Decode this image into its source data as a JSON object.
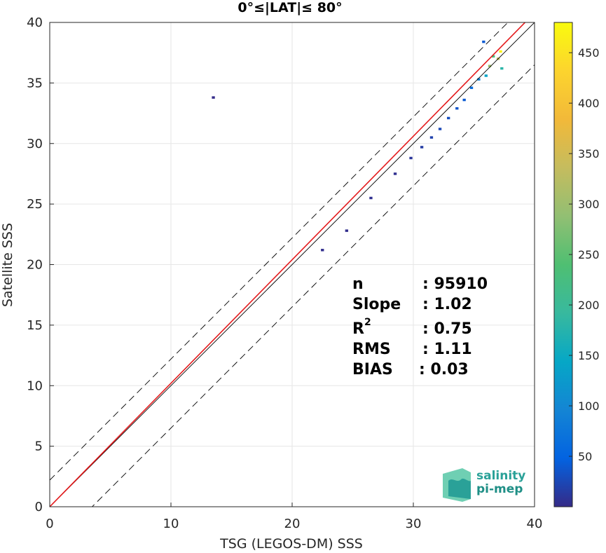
{
  "chart_data": {
    "type": "heatmap",
    "title": "0°≤|LAT|≤ 80°",
    "xlabel": "TSG (LEGOS-DM) SSS",
    "ylabel": "Satellite SSS",
    "xlim": [
      0,
      40
    ],
    "ylim": [
      0,
      40
    ],
    "xticks": [
      "0",
      "10",
      "20",
      "30",
      "40"
    ],
    "yticks": [
      "0",
      "5",
      "10",
      "15",
      "20",
      "25",
      "30",
      "35",
      "40"
    ],
    "grid": true,
    "colormap": "parula",
    "colorbar": {
      "range": [
        0,
        480
      ],
      "ticks": [
        "50",
        "100",
        "150",
        "200",
        "250",
        "300",
        "350",
        "400",
        "450"
      ]
    },
    "reference_lines": [
      {
        "name": "1:1",
        "style": "solid",
        "color": "#000000",
        "intercept": 0,
        "slope": 1
      },
      {
        "name": "fit",
        "style": "solid",
        "color": "#e41a1c",
        "intercept": 0,
        "slope": 1.02
      },
      {
        "name": "upper",
        "style": "dashed",
        "color": "#000000",
        "intercept": 2.2,
        "slope": 1
      },
      {
        "name": "lower",
        "style": "dashed",
        "color": "#000000",
        "intercept": -3.5,
        "slope": 1
      }
    ],
    "density_cells": [
      {
        "x": 37.2,
        "y": 37.6,
        "v": 470
      },
      {
        "x": 37.0,
        "y": 37.0,
        "v": 330
      },
      {
        "x": 36.3,
        "y": 36.4,
        "v": 300
      },
      {
        "x": 36.6,
        "y": 37.2,
        "v": 230
      },
      {
        "x": 37.3,
        "y": 36.2,
        "v": 180
      },
      {
        "x": 36.0,
        "y": 35.6,
        "v": 140
      },
      {
        "x": 35.4,
        "y": 35.3,
        "v": 90
      },
      {
        "x": 34.8,
        "y": 34.6,
        "v": 60
      },
      {
        "x": 35.8,
        "y": 38.4,
        "v": 40
      },
      {
        "x": 34.2,
        "y": 33.6,
        "v": 40
      },
      {
        "x": 33.6,
        "y": 32.9,
        "v": 35
      },
      {
        "x": 32.9,
        "y": 32.1,
        "v": 30
      },
      {
        "x": 32.2,
        "y": 31.2,
        "v": 25
      },
      {
        "x": 31.5,
        "y": 30.5,
        "v": 20
      },
      {
        "x": 30.7,
        "y": 29.7,
        "v": 15
      },
      {
        "x": 29.8,
        "y": 28.8,
        "v": 10
      },
      {
        "x": 28.5,
        "y": 27.5,
        "v": 5
      },
      {
        "x": 26.5,
        "y": 25.5,
        "v": 5
      },
      {
        "x": 24.5,
        "y": 22.8,
        "v": 3
      },
      {
        "x": 22.5,
        "y": 21.2,
        "v": 3
      },
      {
        "x": 13.5,
        "y": 33.8,
        "v": 1
      }
    ]
  },
  "stats": {
    "n_label": "n",
    "n_value": ": 95910",
    "slope_label": "Slope",
    "slope_value": ": 1.02",
    "r2_label": "R",
    "r2_sup": "2",
    "r2_value": ": 0.75",
    "rms_label": "RMS",
    "rms_value": ": 1.11",
    "bias_label": "BIAS",
    "bias_value": ": 0.03"
  },
  "logo": {
    "line1": "salinity",
    "line2": "pi-mep"
  },
  "colors": {
    "fit_line": "#e41a1c",
    "one_to_one": "#000000",
    "grid": "#e6e6e6"
  }
}
